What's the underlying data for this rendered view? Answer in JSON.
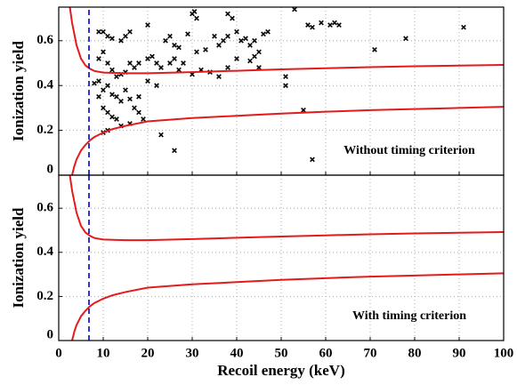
{
  "chart_data": [
    {
      "type": "scatter",
      "ylabel": "Ionization yield",
      "annotation": "Without timing criterion",
      "xlim": [
        0,
        100
      ],
      "xticks": [
        0,
        10,
        20,
        30,
        40,
        50,
        60,
        70,
        80,
        90,
        100
      ],
      "ylim": [
        0,
        0.75
      ],
      "yticks": [
        0,
        0.2,
        0.4,
        0.6
      ],
      "grid": true,
      "series": [
        {
          "kind": "scatter",
          "color": "#000000",
          "x": [
            30,
            30.5,
            31,
            38,
            39,
            53,
            59,
            61,
            62,
            56,
            57,
            63,
            91,
            78,
            71,
            9,
            10,
            11,
            12,
            14,
            15,
            16,
            20,
            24,
            25,
            26,
            27,
            29,
            31,
            33,
            35,
            36,
            37,
            38,
            40,
            41,
            42,
            43,
            44,
            45,
            46,
            47,
            43,
            44,
            45,
            51,
            51,
            10,
            9,
            11,
            12,
            13,
            14,
            15,
            16,
            17,
            18,
            20,
            21,
            22,
            23,
            25,
            26,
            27,
            28,
            30,
            32,
            34,
            36,
            38,
            40,
            9,
            10,
            11,
            12,
            13,
            14,
            15,
            16,
            17,
            18,
            19,
            20,
            22,
            8,
            9,
            10,
            11,
            12,
            13,
            14,
            10,
            11,
            23,
            26,
            55,
            57,
            16,
            18
          ],
          "values": [
            0.72,
            0.73,
            0.7,
            0.72,
            0.7,
            0.74,
            0.68,
            0.67,
            0.68,
            0.67,
            0.66,
            0.67,
            0.66,
            0.61,
            0.56,
            0.64,
            0.64,
            0.62,
            0.61,
            0.6,
            0.62,
            0.64,
            0.67,
            0.6,
            0.62,
            0.58,
            0.57,
            0.63,
            0.55,
            0.56,
            0.62,
            0.58,
            0.6,
            0.62,
            0.64,
            0.6,
            0.61,
            0.58,
            0.6,
            0.55,
            0.63,
            0.64,
            0.51,
            0.53,
            0.48,
            0.44,
            0.4,
            0.55,
            0.52,
            0.5,
            0.47,
            0.44,
            0.45,
            0.46,
            0.5,
            0.48,
            0.5,
            0.52,
            0.53,
            0.5,
            0.48,
            0.5,
            0.52,
            0.47,
            0.5,
            0.45,
            0.47,
            0.46,
            0.44,
            0.48,
            0.52,
            0.42,
            0.38,
            0.4,
            0.36,
            0.35,
            0.33,
            0.38,
            0.34,
            0.3,
            0.28,
            0.25,
            0.42,
            0.4,
            0.41,
            0.35,
            0.3,
            0.28,
            0.26,
            0.25,
            0.22,
            0.19,
            0.2,
            0.18,
            0.11,
            0.29,
            0.07,
            0.23,
            0.35
          ]
        },
        {
          "kind": "line",
          "color": "#e41a1c",
          "x": [
            2.5,
            3,
            4,
            5,
            6,
            7,
            8,
            10,
            15,
            20,
            30,
            40,
            50,
            60,
            70,
            80,
            90,
            100
          ],
          "values": [
            0.75,
            0.68,
            0.58,
            0.52,
            0.49,
            0.475,
            0.465,
            0.458,
            0.455,
            0.455,
            0.46,
            0.466,
            0.472,
            0.477,
            0.482,
            0.486,
            0.489,
            0.492
          ]
        },
        {
          "kind": "line",
          "color": "#e41a1c",
          "x": [
            3,
            3.5,
            4,
            5,
            6,
            7,
            8,
            10,
            12,
            15,
            20,
            30,
            40,
            50,
            60,
            70,
            80,
            90,
            100
          ],
          "values": [
            0,
            0.04,
            0.07,
            0.11,
            0.135,
            0.155,
            0.17,
            0.19,
            0.205,
            0.22,
            0.24,
            0.255,
            0.265,
            0.275,
            0.283,
            0.29,
            0.295,
            0.3,
            0.305
          ]
        },
        {
          "kind": "line",
          "color": "#0000cc",
          "dash": true,
          "x": [
            6.8,
            6.8
          ],
          "values": [
            0,
            0.75
          ]
        }
      ]
    },
    {
      "type": "scatter",
      "ylabel": "Ionization yield",
      "xlabel": "Recoil energy (keV)",
      "annotation": "With timing criterion",
      "xlim": [
        0,
        100
      ],
      "xticks": [
        0,
        10,
        20,
        30,
        40,
        50,
        60,
        70,
        80,
        90,
        100
      ],
      "ylim": [
        0,
        0.75
      ],
      "yticks": [
        0,
        0.2,
        0.4,
        0.6
      ],
      "grid": true,
      "series": [
        {
          "kind": "line",
          "color": "#e41a1c",
          "x": [
            2.5,
            3,
            4,
            5,
            6,
            7,
            8,
            10,
            15,
            20,
            30,
            40,
            50,
            60,
            70,
            80,
            90,
            100
          ],
          "values": [
            0.75,
            0.68,
            0.58,
            0.52,
            0.49,
            0.475,
            0.465,
            0.458,
            0.455,
            0.455,
            0.46,
            0.466,
            0.472,
            0.477,
            0.482,
            0.486,
            0.489,
            0.492
          ]
        },
        {
          "kind": "line",
          "color": "#e41a1c",
          "x": [
            3,
            3.5,
            4,
            5,
            6,
            7,
            8,
            10,
            12,
            15,
            20,
            30,
            40,
            50,
            60,
            70,
            80,
            90,
            100
          ],
          "values": [
            0,
            0.04,
            0.07,
            0.11,
            0.135,
            0.155,
            0.17,
            0.19,
            0.205,
            0.22,
            0.24,
            0.255,
            0.265,
            0.275,
            0.283,
            0.29,
            0.295,
            0.3,
            0.305
          ]
        },
        {
          "kind": "line",
          "color": "#0000cc",
          "dash": true,
          "x": [
            6.8,
            6.8
          ],
          "values": [
            0,
            0.75
          ]
        }
      ]
    }
  ]
}
